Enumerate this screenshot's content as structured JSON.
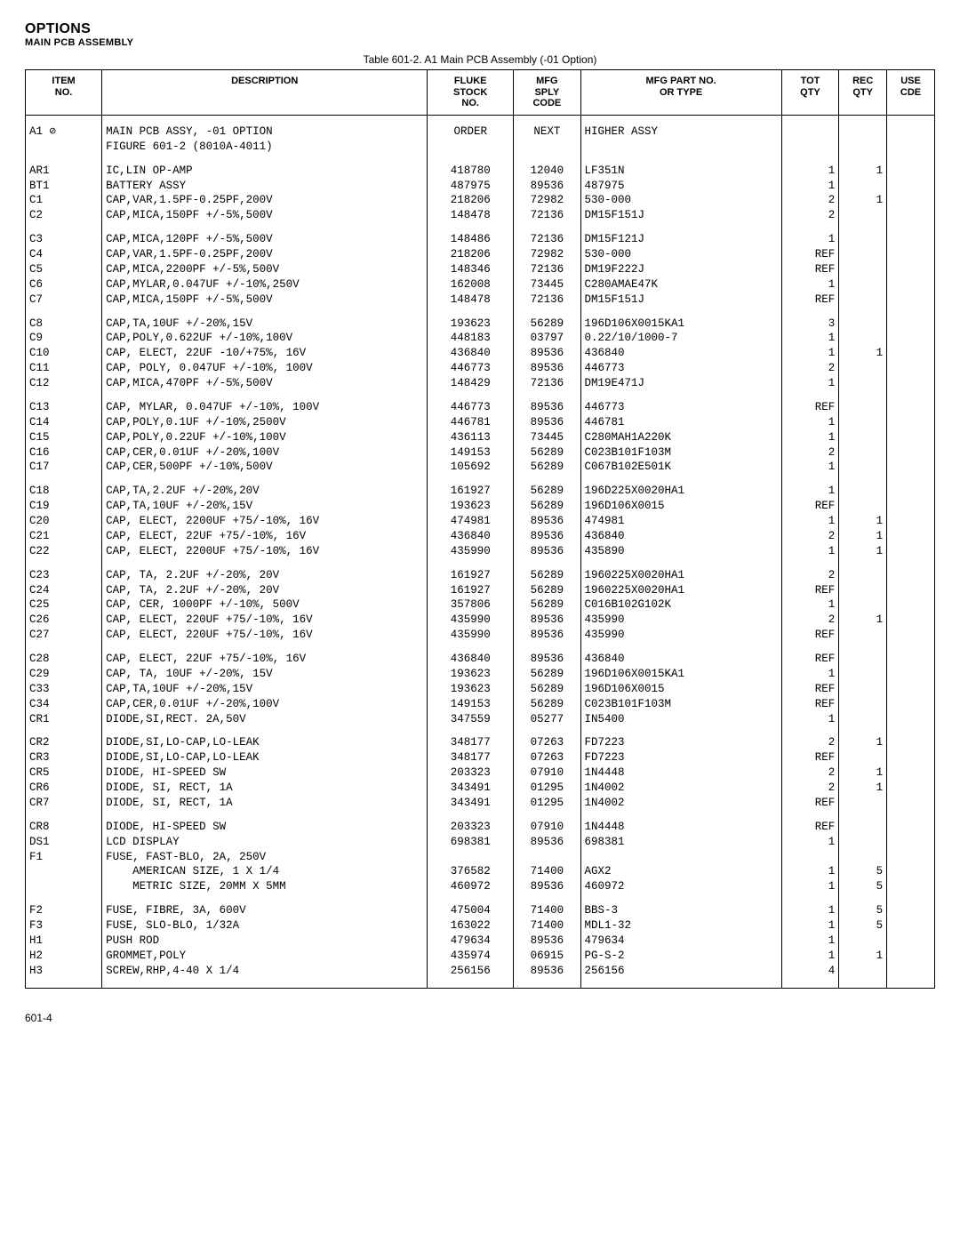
{
  "heading": {
    "main": "OPTIONS",
    "sub": "MAIN PCB ASSEMBLY"
  },
  "table_caption": "Table 601-2. A1 Main PCB Assembly (-01 Option)",
  "columns": [
    "ITEM\nNO.",
    "DESCRIPTION",
    "FLUKE\nSTOCK\nNO.",
    "MFG\nSPLY\nCODE",
    "MFG PART NO.\nOR TYPE",
    "TOT\nQTY",
    "REC\nQTY",
    "USE\nCDE"
  ],
  "rows": [
    {
      "g": 1,
      "i": "A1 ⊘",
      "d": "MAIN PCB ASSY, -01 OPTION",
      "s": "ORDER",
      "c": "NEXT",
      "p": "HIGHER ASSY",
      "t": "",
      "r": "",
      "u": ""
    },
    {
      "g": 0,
      "i": "",
      "d": "FIGURE 601-2 (8010A-4011)",
      "s": "",
      "c": "",
      "p": "",
      "t": "",
      "r": "",
      "u": ""
    },
    {
      "g": 1,
      "i": "AR1",
      "d": "IC,LIN OP-AMP",
      "s": "418780",
      "c": "12040",
      "p": "LF351N",
      "t": "1",
      "r": "1",
      "u": ""
    },
    {
      "g": 0,
      "i": "BT1",
      "d": "BATTERY ASSY",
      "s": "487975",
      "c": "89536",
      "p": "487975",
      "t": "1",
      "r": "",
      "u": ""
    },
    {
      "g": 0,
      "i": "C1",
      "d": "CAP,VAR,1.5PF-0.25PF,200V",
      "s": "218206",
      "c": "72982",
      "p": "530-000",
      "t": "2",
      "r": "1",
      "u": ""
    },
    {
      "g": 0,
      "i": "C2",
      "d": "CAP,MICA,150PF +/-5%,500V",
      "s": "148478",
      "c": "72136",
      "p": "DM15F151J",
      "t": "2",
      "r": "",
      "u": ""
    },
    {
      "g": 1,
      "i": "C3",
      "d": "CAP,MICA,120PF +/-5%,500V",
      "s": "148486",
      "c": "72136",
      "p": "DM15F121J",
      "t": "1",
      "r": "",
      "u": ""
    },
    {
      "g": 0,
      "i": "C4",
      "d": "CAP,VAR,1.5PF-0.25PF,200V",
      "s": "218206",
      "c": "72982",
      "p": "530-000",
      "t": "REF",
      "r": "",
      "u": ""
    },
    {
      "g": 0,
      "i": "C5",
      "d": "CAP,MICA,2200PF +/-5%,500V",
      "s": "148346",
      "c": "72136",
      "p": "DM19F222J",
      "t": "REF",
      "r": "",
      "u": ""
    },
    {
      "g": 0,
      "i": "C6",
      "d": "CAP,MYLAR,0.047UF +/-10%,250V",
      "s": "162008",
      "c": "73445",
      "p": "C280AMAE47K",
      "t": "1",
      "r": "",
      "u": ""
    },
    {
      "g": 0,
      "i": "C7",
      "d": "CAP,MICA,150PF +/-5%,500V",
      "s": "148478",
      "c": "72136",
      "p": "DM15F151J",
      "t": "REF",
      "r": "",
      "u": ""
    },
    {
      "g": 1,
      "i": "C8",
      "d": "CAP,TA,10UF +/-20%,15V",
      "s": "193623",
      "c": "56289",
      "p": "196D106X0015KA1",
      "t": "3",
      "r": "",
      "u": ""
    },
    {
      "g": 0,
      "i": "C9",
      "d": "CAP,POLY,0.622UF +/-10%,100V",
      "s": "448183",
      "c": "03797",
      "p": "0.22/10/1000-7",
      "t": "1",
      "r": "",
      "u": ""
    },
    {
      "g": 0,
      "i": "C10",
      "d": "CAP, ELECT, 22UF -10/+75%, 16V",
      "s": "436840",
      "c": "89536",
      "p": "436840",
      "t": "1",
      "r": "1",
      "u": ""
    },
    {
      "g": 0,
      "i": "C11",
      "d": "CAP, POLY, 0.047UF +/-10%, 100V",
      "s": "446773",
      "c": "89536",
      "p": "446773",
      "t": "2",
      "r": "",
      "u": ""
    },
    {
      "g": 0,
      "i": "C12",
      "d": "CAP,MICA,470PF +/-5%,500V",
      "s": "148429",
      "c": "72136",
      "p": "DM19E471J",
      "t": "1",
      "r": "",
      "u": ""
    },
    {
      "g": 1,
      "i": "C13",
      "d": "CAP, MYLAR, 0.047UF +/-10%, 100V",
      "s": "446773",
      "c": "89536",
      "p": "446773",
      "t": "REF",
      "r": "",
      "u": ""
    },
    {
      "g": 0,
      "i": "C14",
      "d": "CAP,POLY,0.1UF +/-10%,2500V",
      "s": "446781",
      "c": "89536",
      "p": "446781",
      "t": "1",
      "r": "",
      "u": ""
    },
    {
      "g": 0,
      "i": "C15",
      "d": "CAP,POLY,0.22UF +/-10%,100V",
      "s": "436113",
      "c": "73445",
      "p": "C280MAH1A220K",
      "t": "1",
      "r": "",
      "u": ""
    },
    {
      "g": 0,
      "i": "C16",
      "d": "CAP,CER,0.01UF +/-20%,100V",
      "s": "149153",
      "c": "56289",
      "p": "C023B101F103M",
      "t": "2",
      "r": "",
      "u": ""
    },
    {
      "g": 0,
      "i": "C17",
      "d": "CAP,CER,500PF +/-10%,500V",
      "s": "105692",
      "c": "56289",
      "p": "C067B102E501K",
      "t": "1",
      "r": "",
      "u": ""
    },
    {
      "g": 1,
      "i": "C18",
      "d": "CAP,TA,2.2UF +/-20%,20V",
      "s": "161927",
      "c": "56289",
      "p": "196D225X0020HA1",
      "t": "1",
      "r": "",
      "u": ""
    },
    {
      "g": 0,
      "i": "C19",
      "d": "CAP,TA,10UF +/-20%,15V",
      "s": "193623",
      "c": "56289",
      "p": "196D106X0015",
      "t": "REF",
      "r": "",
      "u": ""
    },
    {
      "g": 0,
      "i": "C20",
      "d": "CAP, ELECT, 2200UF +75/-10%, 16V",
      "s": "474981",
      "c": "89536",
      "p": "474981",
      "t": "1",
      "r": "1",
      "u": ""
    },
    {
      "g": 0,
      "i": "C21",
      "d": "CAP, ELECT, 22UF +75/-10%, 16V",
      "s": "436840",
      "c": "89536",
      "p": "436840",
      "t": "2",
      "r": "1",
      "u": ""
    },
    {
      "g": 0,
      "i": "C22",
      "d": "CAP, ELECT, 2200UF +75/-10%, 16V",
      "s": "435990",
      "c": "89536",
      "p": "435890",
      "t": "1",
      "r": "1",
      "u": ""
    },
    {
      "g": 1,
      "i": "C23",
      "d": "CAP, TA, 2.2UF +/-20%, 20V",
      "s": "161927",
      "c": "56289",
      "p": "1960225X0020HA1",
      "t": "2",
      "r": "",
      "u": ""
    },
    {
      "g": 0,
      "i": "C24",
      "d": "CAP, TA, 2.2UF +/-20%, 20V",
      "s": "161927",
      "c": "56289",
      "p": "1960225X0020HA1",
      "t": "REF",
      "r": "",
      "u": ""
    },
    {
      "g": 0,
      "i": "C25",
      "d": "CAP, CER, 1000PF +/-10%, 500V",
      "s": "357806",
      "c": "56289",
      "p": "C016B102G102K",
      "t": "1",
      "r": "",
      "u": ""
    },
    {
      "g": 0,
      "i": "C26",
      "d": "CAP, ELECT, 220UF +75/-10%, 16V",
      "s": "435990",
      "c": "89536",
      "p": "435990",
      "t": "2",
      "r": "1",
      "u": ""
    },
    {
      "g": 0,
      "i": "C27",
      "d": "CAP, ELECT, 220UF +75/-10%, 16V",
      "s": "435990",
      "c": "89536",
      "p": "435990",
      "t": "REF",
      "r": "",
      "u": ""
    },
    {
      "g": 1,
      "i": "C28",
      "d": "CAP, ELECT, 22UF +75/-10%, 16V",
      "s": "436840",
      "c": "89536",
      "p": "436840",
      "t": "REF",
      "r": "",
      "u": ""
    },
    {
      "g": 0,
      "i": "C29",
      "d": "CAP, TA, 10UF +/-20%, 15V",
      "s": "193623",
      "c": "56289",
      "p": "196D106X0015KA1",
      "t": "1",
      "r": "",
      "u": ""
    },
    {
      "g": 0,
      "i": "C33",
      "d": "CAP,TA,10UF +/-20%,15V",
      "s": "193623",
      "c": "56289",
      "p": "196D106X0015",
      "t": "REF",
      "r": "",
      "u": ""
    },
    {
      "g": 0,
      "i": "C34",
      "d": "CAP,CER,0.01UF +/-20%,100V",
      "s": "149153",
      "c": "56289",
      "p": "C023B101F103M",
      "t": "REF",
      "r": "",
      "u": ""
    },
    {
      "g": 0,
      "i": "CR1",
      "d": "DIODE,SI,RECT. 2A,50V",
      "s": "347559",
      "c": "05277",
      "p": "IN5400",
      "t": "1",
      "r": "",
      "u": ""
    },
    {
      "g": 1,
      "i": "CR2",
      "d": "DIODE,SI,LO-CAP,LO-LEAK",
      "s": "348177",
      "c": "07263",
      "p": "FD7223",
      "t": "2",
      "r": "1",
      "u": ""
    },
    {
      "g": 0,
      "i": "CR3",
      "d": "DIODE,SI,LO-CAP,LO-LEAK",
      "s": "348177",
      "c": "07263",
      "p": "FD7223",
      "t": "REF",
      "r": "",
      "u": ""
    },
    {
      "g": 0,
      "i": "CR5",
      "d": "DIODE, HI-SPEED SW",
      "s": "203323",
      "c": "07910",
      "p": "1N4448",
      "t": "2",
      "r": "1",
      "u": ""
    },
    {
      "g": 0,
      "i": "CR6",
      "d": "DIODE, SI, RECT, 1A",
      "s": "343491",
      "c": "01295",
      "p": "1N4002",
      "t": "2",
      "r": "1",
      "u": ""
    },
    {
      "g": 0,
      "i": "CR7",
      "d": "DIODE, SI, RECT, 1A",
      "s": "343491",
      "c": "01295",
      "p": "1N4002",
      "t": "REF",
      "r": "",
      "u": ""
    },
    {
      "g": 1,
      "i": "CR8",
      "d": "DIODE, HI-SPEED SW",
      "s": "203323",
      "c": "07910",
      "p": "1N4448",
      "t": "REF",
      "r": "",
      "u": ""
    },
    {
      "g": 0,
      "i": "DS1",
      "d": "LCD DISPLAY",
      "s": "698381",
      "c": "89536",
      "p": "698381",
      "t": "1",
      "r": "",
      "u": ""
    },
    {
      "g": 0,
      "i": "F1",
      "d": "FUSE, FAST-BLO, 2A, 250V",
      "s": "",
      "c": "",
      "p": "",
      "t": "",
      "r": "",
      "u": ""
    },
    {
      "g": 0,
      "i": "",
      "d": "    AMERICAN SIZE, 1 X 1/4",
      "s": "376582",
      "c": "71400",
      "p": "AGX2",
      "t": "1",
      "r": "5",
      "u": ""
    },
    {
      "g": 0,
      "i": "",
      "d": "    METRIC SIZE, 20MM X 5MM",
      "s": "460972",
      "c": "89536",
      "p": "460972",
      "t": "1",
      "r": "5",
      "u": ""
    },
    {
      "g": 1,
      "i": "F2",
      "d": "FUSE, FIBRE, 3A, 600V",
      "s": "475004",
      "c": "71400",
      "p": "BBS-3",
      "t": "1",
      "r": "5",
      "u": ""
    },
    {
      "g": 0,
      "i": "F3",
      "d": "FUSE, SLO-BLO, 1/32A",
      "s": "163022",
      "c": "71400",
      "p": "MDL1-32",
      "t": "1",
      "r": "5",
      "u": ""
    },
    {
      "g": 0,
      "i": "H1",
      "d": "PUSH ROD",
      "s": "479634",
      "c": "89536",
      "p": "479634",
      "t": "1",
      "r": "",
      "u": ""
    },
    {
      "g": 0,
      "i": "H2",
      "d": "GROMMET,POLY",
      "s": "435974",
      "c": "06915",
      "p": "PG-S-2",
      "t": "1",
      "r": "1",
      "u": ""
    },
    {
      "g": 0,
      "i": "H3",
      "d": "SCREW,RHP,4-40 X 1/4",
      "s": "256156",
      "c": "89536",
      "p": "256156",
      "t": "4",
      "r": "",
      "u": ""
    }
  ],
  "footer": "601-4"
}
